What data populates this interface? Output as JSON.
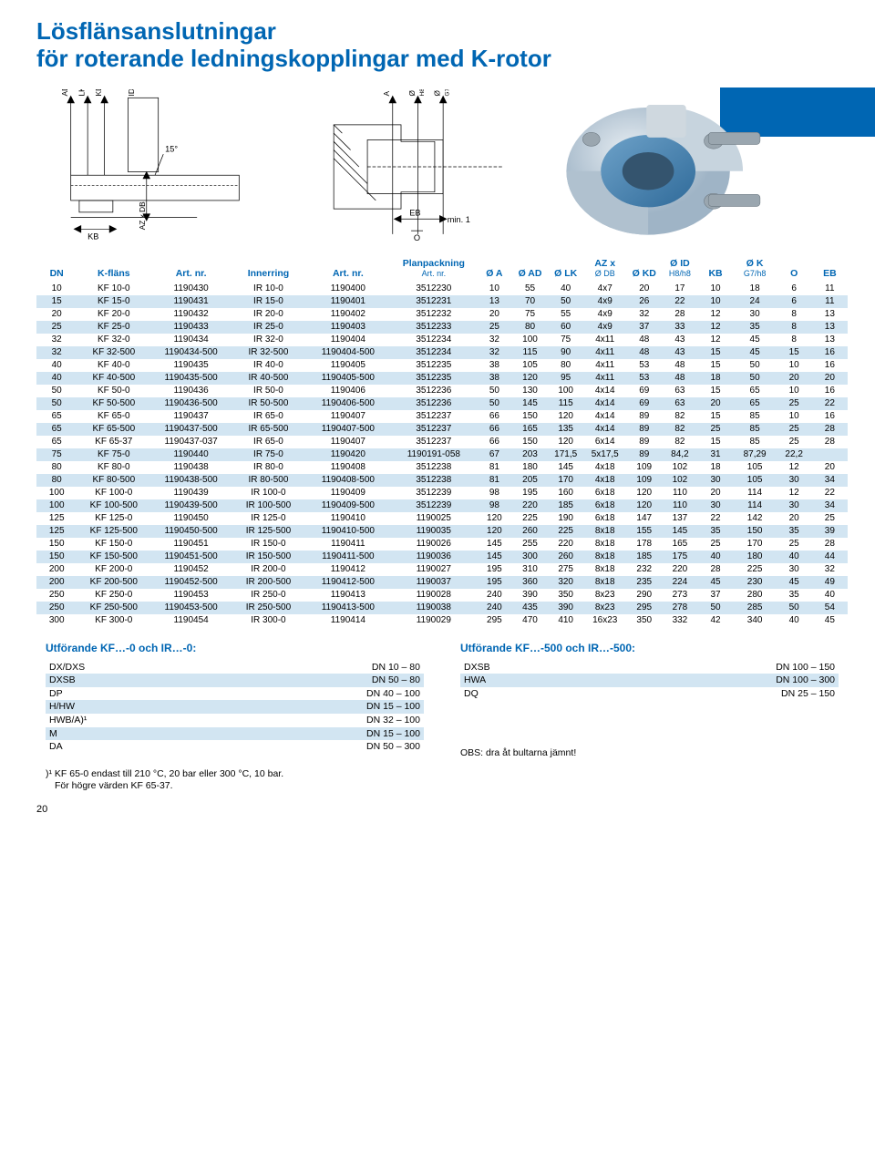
{
  "title_line1": "Lösflänsanslutningar",
  "title_line2": "för roterande ledningskopplingar med K-rotor",
  "diagram_labels": {
    "AD": "AD",
    "LK": "LK",
    "KD": "KD",
    "IDH8": "ID H8",
    "15deg": "15°",
    "KB": "KB",
    "AZxDB": "AZ x DB",
    "A": "A",
    "OID": "Ø ID",
    "H8h8": "H8/h8",
    "OK": "Ø K",
    "G7h8": "G7/h8",
    "EB": "EB",
    "O": "O",
    "min1": "min. 1"
  },
  "headers": [
    "DN",
    "K-fläns",
    "Art. nr.",
    "Innerring",
    "Art. nr.",
    "Planpackning\nArt. nr.",
    "Ø A",
    "Ø AD",
    "Ø LK",
    "AZ x\nØ DB",
    "Ø KD",
    "Ø ID\nH8/h8",
    "KB",
    "Ø K\nG7/h8",
    "O",
    "EB"
  ],
  "col_classes": [
    "col-dn",
    "col-kflans",
    "col-art1",
    "col-innerring",
    "col-art2",
    "col-plan",
    "col-n",
    "col-n",
    "col-n",
    "col-n2",
    "col-n",
    "col-n",
    "col-n",
    "col-n2",
    "col-n",
    "col-n"
  ],
  "stripe_color": "#d2e5f2",
  "header_color": "#0066b3",
  "rows": [
    [
      "10",
      "KF 10-0",
      "1190430",
      "IR 10-0",
      "1190400",
      "3512230",
      "10",
      "55",
      "40",
      "4x7",
      "20",
      "17",
      "10",
      "18",
      "6",
      "11"
    ],
    [
      "15",
      "KF 15-0",
      "1190431",
      "IR 15-0",
      "1190401",
      "3512231",
      "13",
      "70",
      "50",
      "4x9",
      "26",
      "22",
      "10",
      "24",
      "6",
      "11"
    ],
    [
      "20",
      "KF 20-0",
      "1190432",
      "IR 20-0",
      "1190402",
      "3512232",
      "20",
      "75",
      "55",
      "4x9",
      "32",
      "28",
      "12",
      "30",
      "8",
      "13"
    ],
    [
      "25",
      "KF 25-0",
      "1190433",
      "IR 25-0",
      "1190403",
      "3512233",
      "25",
      "80",
      "60",
      "4x9",
      "37",
      "33",
      "12",
      "35",
      "8",
      "13"
    ],
    [
      "32",
      "KF 32-0",
      "1190434",
      "IR 32-0",
      "1190404",
      "3512234",
      "32",
      "100",
      "75",
      "4x11",
      "48",
      "43",
      "12",
      "45",
      "8",
      "13"
    ],
    [
      "32",
      "KF 32-500",
      "1190434-500",
      "IR 32-500",
      "1190404-500",
      "3512234",
      "32",
      "115",
      "90",
      "4x11",
      "48",
      "43",
      "15",
      "45",
      "15",
      "16"
    ],
    [
      "40",
      "KF 40-0",
      "1190435",
      "IR 40-0",
      "1190405",
      "3512235",
      "38",
      "105",
      "80",
      "4x11",
      "53",
      "48",
      "15",
      "50",
      "10",
      "16"
    ],
    [
      "40",
      "KF 40-500",
      "1190435-500",
      "IR 40-500",
      "1190405-500",
      "3512235",
      "38",
      "120",
      "95",
      "4x11",
      "53",
      "48",
      "18",
      "50",
      "20",
      "20"
    ],
    [
      "50",
      "KF 50-0",
      "1190436",
      "IR 50-0",
      "1190406",
      "3512236",
      "50",
      "130",
      "100",
      "4x14",
      "69",
      "63",
      "15",
      "65",
      "10",
      "16"
    ],
    [
      "50",
      "KF 50-500",
      "1190436-500",
      "IR 50-500",
      "1190406-500",
      "3512236",
      "50",
      "145",
      "115",
      "4x14",
      "69",
      "63",
      "20",
      "65",
      "25",
      "22"
    ],
    [
      "65",
      "KF 65-0",
      "1190437",
      "IR 65-0",
      "1190407",
      "3512237",
      "66",
      "150",
      "120",
      "4x14",
      "89",
      "82",
      "15",
      "85",
      "10",
      "16"
    ],
    [
      "65",
      "KF 65-500",
      "1190437-500",
      "IR 65-500",
      "1190407-500",
      "3512237",
      "66",
      "165",
      "135",
      "4x14",
      "89",
      "82",
      "25",
      "85",
      "25",
      "28"
    ],
    [
      "65",
      "KF 65-37",
      "1190437-037",
      "IR 65-0",
      "1190407",
      "3512237",
      "66",
      "150",
      "120",
      "6x14",
      "89",
      "82",
      "15",
      "85",
      "25",
      "28"
    ],
    [
      "75",
      "KF 75-0",
      "1190440",
      "IR 75-0",
      "1190420",
      "1190191-058",
      "67",
      "203",
      "171,5",
      "5x17,5",
      "89",
      "84,2",
      "31",
      "87,29",
      "22,2",
      ""
    ],
    [
      "80",
      "KF 80-0",
      "1190438",
      "IR 80-0",
      "1190408",
      "3512238",
      "81",
      "180",
      "145",
      "4x18",
      "109",
      "102",
      "18",
      "105",
      "12",
      "20"
    ],
    [
      "80",
      "KF 80-500",
      "1190438-500",
      "IR 80-500",
      "1190408-500",
      "3512238",
      "81",
      "205",
      "170",
      "4x18",
      "109",
      "102",
      "30",
      "105",
      "30",
      "34"
    ],
    [
      "100",
      "KF 100-0",
      "1190439",
      "IR 100-0",
      "1190409",
      "3512239",
      "98",
      "195",
      "160",
      "6x18",
      "120",
      "110",
      "20",
      "114",
      "12",
      "22"
    ],
    [
      "100",
      "KF 100-500",
      "1190439-500",
      "IR 100-500",
      "1190409-500",
      "3512239",
      "98",
      "220",
      "185",
      "6x18",
      "120",
      "110",
      "30",
      "114",
      "30",
      "34"
    ],
    [
      "125",
      "KF 125-0",
      "1190450",
      "IR 125-0",
      "1190410",
      "1190025",
      "120",
      "225",
      "190",
      "6x18",
      "147",
      "137",
      "22",
      "142",
      "20",
      "25"
    ],
    [
      "125",
      "KF 125-500",
      "1190450-500",
      "IR 125-500",
      "1190410-500",
      "1190035",
      "120",
      "260",
      "225",
      "8x18",
      "155",
      "145",
      "35",
      "150",
      "35",
      "39"
    ],
    [
      "150",
      "KF 150-0",
      "1190451",
      "IR 150-0",
      "1190411",
      "1190026",
      "145",
      "255",
      "220",
      "8x18",
      "178",
      "165",
      "25",
      "170",
      "25",
      "28"
    ],
    [
      "150",
      "KF 150-500",
      "1190451-500",
      "IR 150-500",
      "1190411-500",
      "1190036",
      "145",
      "300",
      "260",
      "8x18",
      "185",
      "175",
      "40",
      "180",
      "40",
      "44"
    ],
    [
      "200",
      "KF 200-0",
      "1190452",
      "IR 200-0",
      "1190412",
      "1190027",
      "195",
      "310",
      "275",
      "8x18",
      "232",
      "220",
      "28",
      "225",
      "30",
      "32"
    ],
    [
      "200",
      "KF 200-500",
      "1190452-500",
      "IR 200-500",
      "1190412-500",
      "1190037",
      "195",
      "360",
      "320",
      "8x18",
      "235",
      "224",
      "45",
      "230",
      "45",
      "49"
    ],
    [
      "250",
      "KF 250-0",
      "1190453",
      "IR 250-0",
      "1190413",
      "1190028",
      "240",
      "390",
      "350",
      "8x23",
      "290",
      "273",
      "37",
      "280",
      "35",
      "40"
    ],
    [
      "250",
      "KF 250-500",
      "1190453-500",
      "IR 250-500",
      "1190413-500",
      "1190038",
      "240",
      "435",
      "390",
      "8x23",
      "295",
      "278",
      "50",
      "285",
      "50",
      "54"
    ],
    [
      "300",
      "KF 300-0",
      "1190454",
      "IR 300-0",
      "1190414",
      "1190029",
      "295",
      "470",
      "410",
      "16x23",
      "350",
      "332",
      "42",
      "340",
      "40",
      "45"
    ]
  ],
  "left_block": {
    "heading": "Utförande KF…-0 och IR…-0:",
    "rows": [
      [
        "DX/DXS",
        "DN 10 – 80"
      ],
      [
        "DXSB",
        "DN 50 – 80"
      ],
      [
        "DP",
        "DN 40 – 100"
      ],
      [
        "H/HW",
        "DN 15 – 100"
      ],
      [
        "HWB/A)¹",
        "DN 32 – 100"
      ],
      [
        "M",
        "DN 15 – 100"
      ],
      [
        "DA",
        "DN 50 – 300"
      ]
    ]
  },
  "right_block": {
    "heading": "Utförande KF…-500 och IR…-500:",
    "rows": [
      [
        "DXSB",
        "DN 100 – 150"
      ],
      [
        "HWA",
        "DN 100 – 300"
      ],
      [
        "DQ",
        "DN  25 – 150"
      ]
    ],
    "note": "OBS: dra åt bultarna jämnt!"
  },
  "footnote_l1": ")¹ KF 65-0 endast till 210 °C, 20 bar eller 300 °C, 10 bar.",
  "footnote_l2": "För högre värden KF 65-37.",
  "page_number": "20"
}
